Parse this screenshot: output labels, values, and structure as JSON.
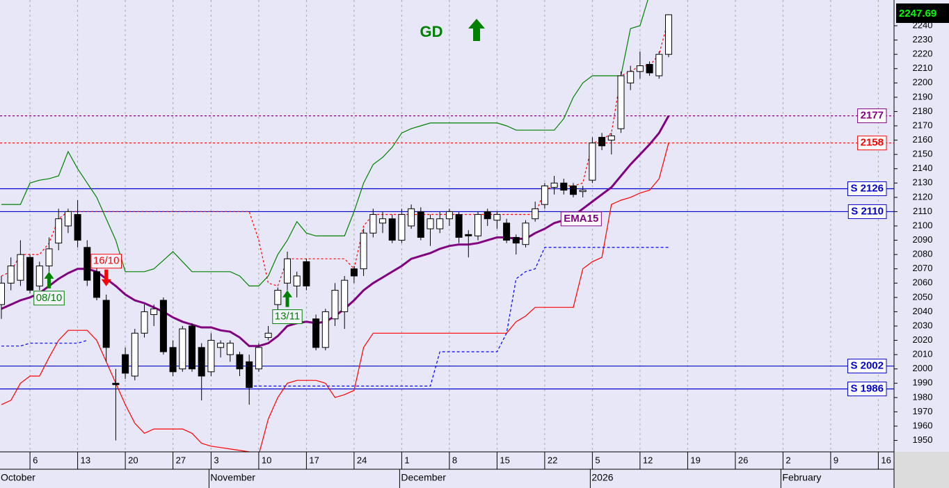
{
  "chart_data": {
    "type": "candlestick",
    "title": "GD",
    "categories": [
      null,
      null,
      null,
      "6",
      null,
      null,
      null,
      null,
      "13",
      null,
      null,
      null,
      null,
      "20",
      null,
      null,
      null,
      null,
      "27",
      null,
      null,
      null,
      "3",
      null,
      null,
      null,
      null,
      "10",
      null,
      null,
      null,
      null,
      "17",
      null,
      null,
      null,
      null,
      "24",
      null,
      null,
      null,
      null,
      "1",
      null,
      null,
      null,
      null,
      "8",
      null,
      null,
      null,
      null,
      "15",
      null,
      null,
      null,
      null,
      "22",
      null,
      null,
      null,
      null,
      "5",
      null,
      null,
      null,
      null,
      "12",
      null,
      null,
      null,
      null,
      "19",
      null,
      null,
      null,
      null,
      "26",
      null,
      null,
      null,
      null,
      "2",
      null,
      null,
      null,
      null,
      "9",
      null,
      null,
      null,
      null,
      "16",
      null
    ],
    "month_labels": [
      "October",
      null,
      null,
      null,
      null,
      null,
      null,
      null,
      null,
      null,
      null,
      null,
      null,
      null,
      null,
      null,
      null,
      null,
      null,
      null,
      null,
      null,
      "November",
      null,
      null,
      null,
      null,
      null,
      null,
      null,
      null,
      null,
      null,
      null,
      null,
      null,
      null,
      null,
      null,
      null,
      null,
      null,
      "December",
      null,
      null,
      null,
      null,
      null,
      null,
      null,
      null,
      null,
      null,
      null,
      null,
      null,
      null,
      null,
      null,
      null,
      null,
      null,
      "2026",
      null,
      null,
      null,
      null,
      null,
      null,
      null,
      null,
      null,
      null,
      null,
      null,
      null,
      null,
      null,
      null,
      null,
      null,
      null,
      "February",
      null,
      null,
      null,
      null,
      null,
      null,
      null,
      null,
      null,
      null,
      null
    ],
    "open": [
      2045,
      2060,
      2062,
      2078,
      2058,
      2072,
      2088,
      2100,
      2108,
      2085,
      2068,
      2048,
      1990,
      2010,
      1995,
      2025,
      2038,
      2048,
      2015,
      2000,
      2030,
      2015,
      1998,
      2015,
      2010,
      2010,
      2005,
      2000,
      2022,
      2045,
      2060,
      2058,
      2075,
      2035,
      2015,
      2035,
      2040,
      2070,
      2070,
      2095,
      2102,
      2105,
      2090,
      2100,
      2110,
      2098,
      2098,
      2105,
      2108,
      2094,
      2093,
      2110,
      2104,
      2102,
      2092,
      2087,
      2105,
      2115,
      2127,
      2130,
      2128,
      2124,
      2132,
      2162,
      2160,
      2168,
      2200,
      2208,
      2213,
      2205,
      2220,
      null,
      null,
      null,
      null,
      null,
      null,
      null,
      null,
      null,
      null,
      null,
      null,
      null,
      null,
      null,
      null,
      null,
      null,
      null,
      null,
      null,
      null,
      null
    ],
    "high": [
      2065,
      2078,
      2090,
      2080,
      2075,
      2092,
      2112,
      2112,
      2118,
      2090,
      2072,
      2052,
      2000,
      2015,
      2028,
      2045,
      2045,
      2050,
      2020,
      2030,
      2032,
      2018,
      2025,
      2020,
      2020,
      2012,
      2010,
      2018,
      2030,
      2057,
      2082,
      2068,
      2077,
      2038,
      2042,
      2060,
      2065,
      2072,
      2098,
      2112,
      2110,
      2108,
      2112,
      2115,
      2113,
      2108,
      2110,
      2112,
      2110,
      2097,
      2110,
      2112,
      2110,
      2105,
      2094,
      2104,
      2117,
      2130,
      2135,
      2133,
      2130,
      2128,
      2162,
      2165,
      2165,
      2208,
      2212,
      2222,
      2215,
      2222,
      2248,
      null,
      null,
      null,
      null,
      null,
      null,
      null,
      null,
      null,
      null,
      null,
      null,
      null,
      null,
      null,
      null,
      null,
      null,
      null,
      null,
      null,
      null,
      null
    ],
    "low": [
      2035,
      2055,
      2058,
      2053,
      2055,
      2068,
      2083,
      2095,
      2085,
      2058,
      2048,
      2005,
      1950,
      1993,
      1992,
      2022,
      2030,
      2010,
      1995,
      1998,
      1998,
      1978,
      1995,
      2008,
      2005,
      1995,
      1975,
      1998,
      2020,
      2040,
      2055,
      2050,
      2055,
      2013,
      2013,
      2030,
      2028,
      2060,
      2065,
      2092,
      2095,
      2088,
      2088,
      2098,
      2090,
      2086,
      2095,
      2100,
      2088,
      2078,
      2090,
      2100,
      2098,
      2088,
      2080,
      2085,
      2103,
      2112,
      2122,
      2122,
      2120,
      2120,
      2130,
      2153,
      2150,
      2165,
      2195,
      2203,
      2205,
      2203,
      2218,
      null,
      null,
      null,
      null,
      null,
      null,
      null,
      null,
      null,
      null,
      null,
      null,
      null,
      null,
      null,
      null,
      null,
      null,
      null,
      null,
      null,
      null,
      null
    ],
    "close": [
      2060,
      2072,
      2080,
      2055,
      2072,
      2084,
      2105,
      2110,
      2090,
      2062,
      2050,
      2015,
      1989,
      1997,
      2025,
      2040,
      2042,
      2012,
      1998,
      2028,
      2000,
      1995,
      2020,
      2018,
      2018,
      2000,
      1987,
      2015,
      2025,
      2055,
      2077,
      2065,
      2058,
      2015,
      2040,
      2055,
      2062,
      2065,
      2095,
      2108,
      2105,
      2090,
      2108,
      2112,
      2092,
      2105,
      2105,
      2110,
      2092,
      2093,
      2108,
      2105,
      2108,
      2090,
      2088,
      2102,
      2112,
      2128,
      2130,
      2125,
      2122,
      2125,
      2158,
      2156,
      2163,
      2205,
      2208,
      2212,
      2207,
      2220,
      2247.69,
      null,
      null,
      null,
      null,
      null,
      null,
      null,
      null,
      null,
      null,
      null,
      null,
      null,
      null,
      null,
      null,
      null,
      null,
      null,
      null,
      null,
      null,
      null
    ],
    "series": [
      {
        "name": "EMA15",
        "color": "#800080",
        "line_style": "bold",
        "values": [
          2042,
          2045,
          2048,
          2050,
          2053,
          2058,
          2063,
          2067,
          2070,
          2070,
          2068,
          2063,
          2058,
          2052,
          2048,
          2046,
          2043,
          2040,
          2036,
          2033,
          2031,
          2029,
          2029,
          2027,
          2026,
          2022,
          2016,
          2016,
          2018,
          2023,
          2030,
          2032,
          2033,
          2032,
          2033,
          2037,
          2042,
          2048,
          2055,
          2060,
          2064,
          2068,
          2072,
          2077,
          2079,
          2081,
          2084,
          2086,
          2087,
          2087,
          2088,
          2090,
          2092,
          2092,
          2091,
          2091,
          2095,
          2098,
          2102,
          2104,
          2107,
          2112,
          2117,
          2122,
          2127,
          2135,
          2143,
          2150,
          2157,
          2165,
          2177,
          null,
          null,
          null,
          null,
          null,
          null,
          null,
          null,
          null,
          null,
          null,
          null,
          null,
          null,
          null,
          null,
          null,
          null,
          null,
          null,
          null,
          null,
          null
        ]
      },
      {
        "color": "#008000",
        "line_style": "solid",
        "values": [
          2115,
          2115,
          2115,
          2130,
          2132,
          2133,
          2135,
          2152,
          2140,
          2130,
          2120,
          2105,
          2090,
          2068,
          2068,
          2068,
          2070,
          2076,
          2082,
          2075,
          2068,
          2068,
          2068,
          2068,
          2068,
          2065,
          2058,
          2058,
          2065,
          2080,
          2090,
          2103,
          2095,
          2093,
          2093,
          2093,
          2093,
          2110,
          2130,
          2143,
          2148,
          2155,
          2165,
          2168,
          2170,
          2172,
          2172,
          2172,
          2172,
          2172,
          2172,
          2172,
          2172,
          2170,
          2167,
          2167,
          2167,
          2167,
          2167,
          2175,
          2190,
          2200,
          2205,
          2205,
          2205,
          2205,
          2238,
          2240,
          2262,
          null,
          null,
          null,
          null,
          null,
          null,
          null,
          null,
          null,
          null,
          null,
          null,
          null,
          null,
          null,
          null,
          null,
          null,
          null,
          null,
          null,
          null,
          null,
          null,
          null
        ]
      },
      {
        "color": "#ff0000",
        "line_style": "solid",
        "values": [
          1975,
          1978,
          1990,
          1995,
          1995,
          2008,
          2020,
          2027,
          2027,
          2027,
          2020,
          2005,
          1990,
          1975,
          1962,
          1955,
          1958,
          1958,
          1958,
          1958,
          1955,
          1948,
          1946,
          1945,
          1944,
          1943,
          1942,
          1940,
          1965,
          1980,
          1990,
          1992,
          1992,
          1992,
          1990,
          1980,
          1982,
          1985,
          2015,
          2025,
          2025,
          2025,
          2025,
          2025,
          2025,
          2025,
          2025,
          2025,
          2025,
          2025,
          2025,
          2025,
          2025,
          2025,
          2033,
          2037,
          2043,
          2043,
          2043,
          2043,
          2043,
          2070,
          2075,
          2078,
          2115,
          2118,
          2120,
          2123,
          2125,
          2133,
          2158,
          null,
          null,
          null,
          null,
          null,
          null,
          null,
          null,
          null,
          null,
          null,
          null,
          null,
          null,
          null,
          null,
          null,
          null,
          null,
          null,
          null,
          null,
          null
        ]
      },
      {
        "color": "#ff0000",
        "line_style": "dotted",
        "values": [
          2065,
          2068,
          2080,
          2080,
          2080,
          2088,
          2105,
          2110,
          2110,
          2110,
          2110,
          2110,
          2110,
          2110,
          2110,
          2110,
          2110,
          2110,
          2110,
          2110,
          2110,
          2110,
          2110,
          2110,
          2110,
          2110,
          2110,
          2090,
          2060,
          2058,
          2077,
          2077,
          2077,
          2077,
          2077,
          2077,
          2077,
          2070,
          2100,
          2108,
          2108,
          2108,
          2108,
          2108,
          2108,
          2108,
          2108,
          2108,
          2108,
          2108,
          2108,
          2108,
          2108,
          2108,
          2108,
          2108,
          2108,
          2125,
          2128,
          2128,
          2128,
          2130,
          2158,
          2160,
          2165,
          2205,
          2208,
          2212,
          2212,
          2220,
          2245,
          null,
          null,
          null,
          null,
          null,
          null,
          null,
          null,
          null,
          null,
          null,
          null,
          null,
          null,
          null,
          null,
          null,
          null,
          null,
          null,
          null,
          null,
          null
        ]
      },
      {
        "color": "#0000ff",
        "line_style": "dashed",
        "values": [
          2016,
          2016,
          2016,
          2018,
          2018,
          2018,
          2018,
          2018,
          2018,
          2020,
          null,
          null,
          null,
          null,
          null,
          null,
          null,
          null,
          null,
          null,
          null,
          null,
          null,
          null,
          null,
          null,
          1988,
          1988,
          1988,
          1988,
          1988,
          1988,
          1988,
          1988,
          1988,
          1988,
          1988,
          1988,
          1988,
          1988,
          1988,
          1988,
          1988,
          1988,
          1988,
          1988,
          2012,
          2012,
          2012,
          2012,
          2012,
          2012,
          2012,
          2025,
          2063,
          2068,
          2070,
          2085,
          2085,
          2085,
          2085,
          2085,
          2085,
          2085,
          2085,
          2085,
          2085,
          2085,
          2085,
          2085,
          2085,
          null,
          null,
          null,
          null,
          null,
          null,
          null,
          null,
          null,
          null,
          null,
          null,
          null,
          null,
          null,
          null,
          null,
          null,
          null,
          null,
          null,
          null,
          null
        ]
      }
    ],
    "levels": [
      {
        "value": 2177,
        "color": "#800080",
        "line_style": "dotted"
      },
      {
        "value": 2158,
        "color": "#ff0000",
        "line_style": "dotted"
      },
      {
        "value": 2126,
        "label": "S 2126",
        "color": "#0000cc",
        "line_style": "solid"
      },
      {
        "value": 2110,
        "label": "S 2110",
        "color": "#0000cc",
        "line_style": "solid"
      },
      {
        "value": 2002,
        "label": "S 2002",
        "color": "#0000cc",
        "line_style": "solid"
      },
      {
        "value": 1986,
        "label": "S 1986",
        "color": "#0000cc",
        "line_style": "solid"
      }
    ],
    "signals": [
      null,
      null,
      null,
      null,
      null,
      {
        "label": "08/10",
        "direction": "up"
      },
      null,
      null,
      null,
      null,
      null,
      {
        "label": "16/10",
        "direction": "down"
      },
      null,
      null,
      null,
      null,
      null,
      null,
      null,
      null,
      null,
      null,
      null,
      null,
      null,
      null,
      null,
      null,
      null,
      null,
      {
        "label": "13/11",
        "direction": "up"
      },
      null,
      null,
      null,
      null,
      null,
      null,
      null,
      null,
      null,
      null,
      null,
      null,
      null,
      null,
      null,
      null,
      null,
      null,
      null,
      null,
      null,
      null,
      null,
      null,
      null,
      null,
      null,
      null,
      null,
      null,
      null,
      null,
      null,
      null,
      null,
      null,
      null,
      null,
      null,
      null,
      null,
      null,
      null,
      null,
      null,
      null,
      null,
      null,
      null,
      null,
      null,
      null,
      null,
      null,
      null,
      null,
      null,
      null,
      null
    ],
    "ylim": [
      1942,
      2258
    ],
    "yticks": [
      1950,
      1960,
      1970,
      1980,
      1990,
      2000,
      2010,
      2020,
      2030,
      2040,
      2050,
      2060,
      2070,
      2080,
      2090,
      2100,
      2110,
      2120,
      2130,
      2140,
      2150,
      2160,
      2170,
      2180,
      2190,
      2200,
      2210,
      2220,
      2230,
      2240
    ],
    "grid": true
  }
}
